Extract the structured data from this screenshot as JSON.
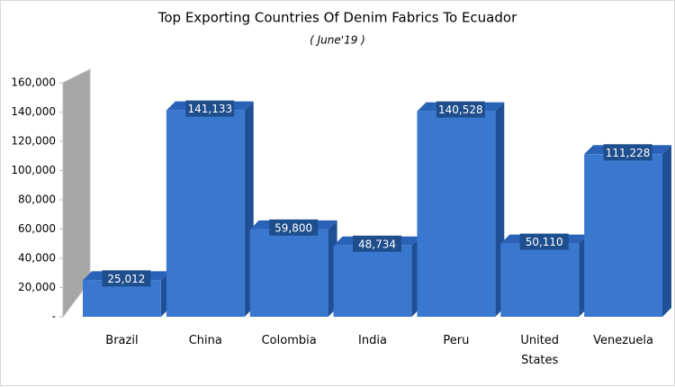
{
  "chart_data": {
    "type": "bar3d",
    "title": "Top Exporting Countries Of Denim Fabrics To Ecuador",
    "subtitle": "( June'19 )",
    "categories": [
      "Brazil",
      "China",
      "Colombia",
      "India",
      "Peru",
      "United States",
      "Venezuela"
    ],
    "values": [
      25012,
      141133,
      59800,
      48734,
      140528,
      50110,
      111228
    ],
    "value_labels": [
      "25,012",
      "141,133",
      "59,800",
      "48,734",
      "140,528",
      "50,110",
      "111,228"
    ],
    "color": "#3a78d0",
    "ylim": [
      0,
      160000
    ],
    "yticks": [
      {
        "value": 0,
        "label": "-"
      },
      {
        "value": 20000,
        "label": "20,000"
      },
      {
        "value": 40000,
        "label": "40,000"
      },
      {
        "value": 60000,
        "label": "60,000"
      },
      {
        "value": 80000,
        "label": "80,000"
      },
      {
        "value": 100000,
        "label": "100,000"
      },
      {
        "value": 120000,
        "label": "120,000"
      },
      {
        "value": 140000,
        "label": "140,000"
      },
      {
        "value": 160000,
        "label": "160,000"
      }
    ]
  }
}
